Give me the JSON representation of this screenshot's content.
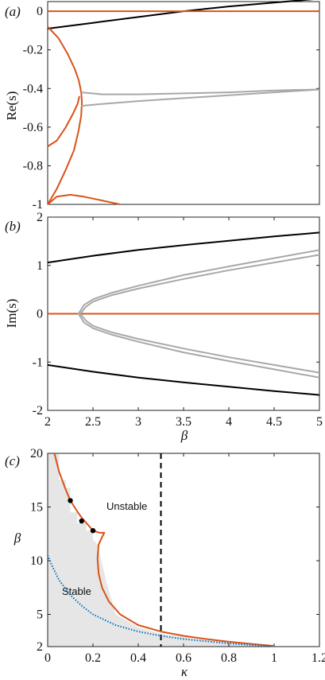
{
  "chart_data": [
    {
      "panel_label": "(a)",
      "type": "line",
      "xlim": [
        2,
        5
      ],
      "ylim": [
        -1,
        0.05
      ],
      "ylabel": "Re(s)",
      "yticks": [
        "0",
        "-0.2",
        "-0.4",
        "-0.6",
        "-0.8",
        "-1"
      ],
      "yticks_values": [
        0,
        -0.2,
        -0.4,
        -0.6,
        -0.8,
        -1
      ],
      "colors": {
        "black": "#000000",
        "orange": "#d95319",
        "gray": "#a8a8a8"
      },
      "series": [
        {
          "color": "black",
          "x": [
            2,
            2.5,
            3,
            3.5,
            4,
            4.5,
            5
          ],
          "y": [
            -0.09,
            -0.06,
            -0.03,
            0.0,
            0.025,
            0.045,
            0.065
          ]
        },
        {
          "color": "orange",
          "x": [
            2,
            5
          ],
          "y": [
            0,
            0
          ]
        },
        {
          "color": "orange",
          "x": [
            2,
            2.12,
            2.22,
            2.3,
            2.345,
            2.37,
            2.378,
            2.37,
            2.34,
            2.29,
            2.2,
            2.1,
            2.0
          ],
          "y": [
            -0.08,
            -0.14,
            -0.22,
            -0.3,
            -0.36,
            -0.42,
            -0.47,
            -0.54,
            -0.62,
            -0.72,
            -0.82,
            -0.92,
            -1.0
          ]
        },
        {
          "color": "orange",
          "x": [
            2,
            2.1,
            2.2,
            2.28,
            2.33,
            2.35
          ],
          "y": [
            -0.7,
            -0.67,
            -0.6,
            -0.53,
            -0.48,
            -0.44
          ]
        },
        {
          "color": "orange",
          "x": [
            2,
            2.1,
            2.25,
            2.4,
            2.6,
            2.8
          ],
          "y": [
            -1.0,
            -0.96,
            -0.95,
            -0.96,
            -0.98,
            -1.0
          ]
        },
        {
          "color": "gray",
          "x": [
            2.37,
            2.6,
            3.0,
            3.5,
            4.0,
            4.5,
            5.0
          ],
          "y": [
            -0.42,
            -0.43,
            -0.43,
            -0.425,
            -0.42,
            -0.41,
            -0.405
          ]
        },
        {
          "color": "gray",
          "x": [
            2.37,
            2.6,
            3.0,
            3.5,
            4.0,
            4.5,
            5.0
          ],
          "y": [
            -0.49,
            -0.48,
            -0.465,
            -0.45,
            -0.435,
            -0.42,
            -0.405
          ]
        }
      ]
    },
    {
      "panel_label": "(b)",
      "type": "line",
      "xlim": [
        2,
        5
      ],
      "ylim": [
        -2,
        2
      ],
      "ylabel": "Im(s)",
      "yticks": [
        "2",
        "1",
        "0",
        "-1",
        "-2"
      ],
      "yticks_values": [
        2,
        1,
        0,
        -1,
        -2
      ],
      "xticks": [
        "2",
        "2.5",
        "3",
        "3.5",
        "4",
        "4.5",
        "5"
      ],
      "xticks_values": [
        2,
        2.5,
        3,
        3.5,
        4,
        4.5,
        5
      ],
      "xlabel": "β",
      "series": [
        {
          "color": "black",
          "x": [
            2,
            2.5,
            3,
            3.5,
            4,
            4.5,
            5
          ],
          "y": [
            1.06,
            1.2,
            1.32,
            1.42,
            1.51,
            1.6,
            1.68
          ]
        },
        {
          "color": "black",
          "x": [
            2,
            2.5,
            3,
            3.5,
            4,
            4.5,
            5
          ],
          "y": [
            -1.06,
            -1.2,
            -1.32,
            -1.42,
            -1.51,
            -1.6,
            -1.68
          ]
        },
        {
          "color": "orange",
          "x": [
            2,
            5
          ],
          "y": [
            0,
            0
          ]
        },
        {
          "color": "gray",
          "x": [
            5.0,
            4.5,
            4.0,
            3.5,
            3.0,
            2.7,
            2.5,
            2.4,
            2.34,
            2.4,
            2.5,
            2.7,
            3.0,
            3.5,
            4.0,
            4.5,
            5.0
          ],
          "y": [
            1.32,
            1.15,
            0.98,
            0.8,
            0.58,
            0.43,
            0.3,
            0.18,
            0.0,
            -0.18,
            -0.3,
            -0.43,
            -0.58,
            -0.8,
            -0.98,
            -1.15,
            -1.32
          ]
        },
        {
          "color": "gray",
          "x": [
            5.0,
            4.5,
            4.0,
            3.5,
            3.0,
            2.7,
            2.5,
            2.42,
            2.36,
            2.42,
            2.5,
            2.7,
            3.0,
            3.5,
            4.0,
            4.5,
            5.0
          ],
          "y": [
            1.22,
            1.06,
            0.9,
            0.72,
            0.52,
            0.38,
            0.25,
            0.14,
            0.0,
            -0.14,
            -0.25,
            -0.38,
            -0.52,
            -0.72,
            -0.9,
            -1.06,
            -1.22
          ]
        }
      ]
    },
    {
      "panel_label": "(c)",
      "type": "line",
      "xlim": [
        0,
        1.2
      ],
      "ylim": [
        2,
        20
      ],
      "xlabel": "κ",
      "ylabel": "β",
      "xticks": [
        "0",
        "0.2",
        "0.4",
        "0.6",
        "0.8",
        "1",
        "1.2"
      ],
      "xticks_values": [
        0,
        0.2,
        0.4,
        0.6,
        0.8,
        1.0,
        1.2
      ],
      "yticks": [
        "20",
        "15",
        "10",
        "5",
        "2"
      ],
      "yticks_values": [
        20,
        15,
        10,
        5,
        2
      ],
      "annotations": [
        {
          "text": "Unstable",
          "x": 0.33,
          "y": 15.2
        },
        {
          "text": "Stable",
          "x": 0.1,
          "y": 6.8
        }
      ],
      "vline": {
        "x": 0.5,
        "style": "dashed",
        "color": "black"
      },
      "colors": {
        "boundary": "#d95319",
        "dotted": "#0072bd",
        "shade": "#e6e6e6"
      },
      "shaded_region": {
        "kappa": [
          0,
          0,
          0.05,
          0.05,
          0.08,
          0.08,
          0.1,
          0.1,
          0.13,
          0.13,
          0.17,
          0.17,
          0.2,
          0.2,
          0.22,
          0.26,
          0.3,
          0.4,
          0.5,
          0.7,
          1.0,
          0
        ],
        "beta": [
          2,
          20,
          20,
          17.5,
          17.5,
          16.8,
          16.8,
          14.5,
          14.5,
          13.5,
          13.5,
          12.8,
          12.8,
          12.0,
          11.5,
          8.0,
          5.0,
          3.8,
          3.2,
          2.6,
          2.05,
          2
        ]
      },
      "series": [
        {
          "name": "boundary",
          "color": "orange",
          "x": [
            0.03,
            0.05,
            0.08,
            0.1,
            0.13,
            0.15,
            0.18,
            0.2,
            0.23,
            0.25,
            0.24,
            0.225,
            0.22,
            0.225,
            0.24,
            0.27,
            0.32,
            0.4,
            0.5,
            0.6,
            0.7,
            0.8,
            0.9,
            1.0
          ],
          "y": [
            20,
            18.3,
            16.6,
            15.6,
            14.6,
            14.0,
            13.3,
            12.8,
            12.6,
            12.6,
            12.2,
            11.5,
            10.2,
            8.8,
            7.5,
            6.2,
            5.0,
            4.0,
            3.4,
            3.0,
            2.7,
            2.45,
            2.25,
            2.05
          ]
        },
        {
          "name": "dotted",
          "color": "blue",
          "style": "dotted",
          "x": [
            0,
            0.02,
            0.05,
            0.1,
            0.15,
            0.2,
            0.3,
            0.4,
            0.5,
            0.6,
            0.7,
            0.8,
            0.9,
            1.0
          ],
          "y": [
            10.5,
            9.5,
            8.2,
            6.8,
            5.8,
            5.0,
            4.0,
            3.4,
            3.0,
            2.7,
            2.5,
            2.3,
            2.15,
            2.05
          ]
        },
        {
          "name": "points",
          "type": "scatter",
          "color": "black",
          "x": [
            0.1,
            0.15,
            0.2
          ],
          "y": [
            15.6,
            13.7,
            12.8
          ]
        }
      ]
    }
  ]
}
